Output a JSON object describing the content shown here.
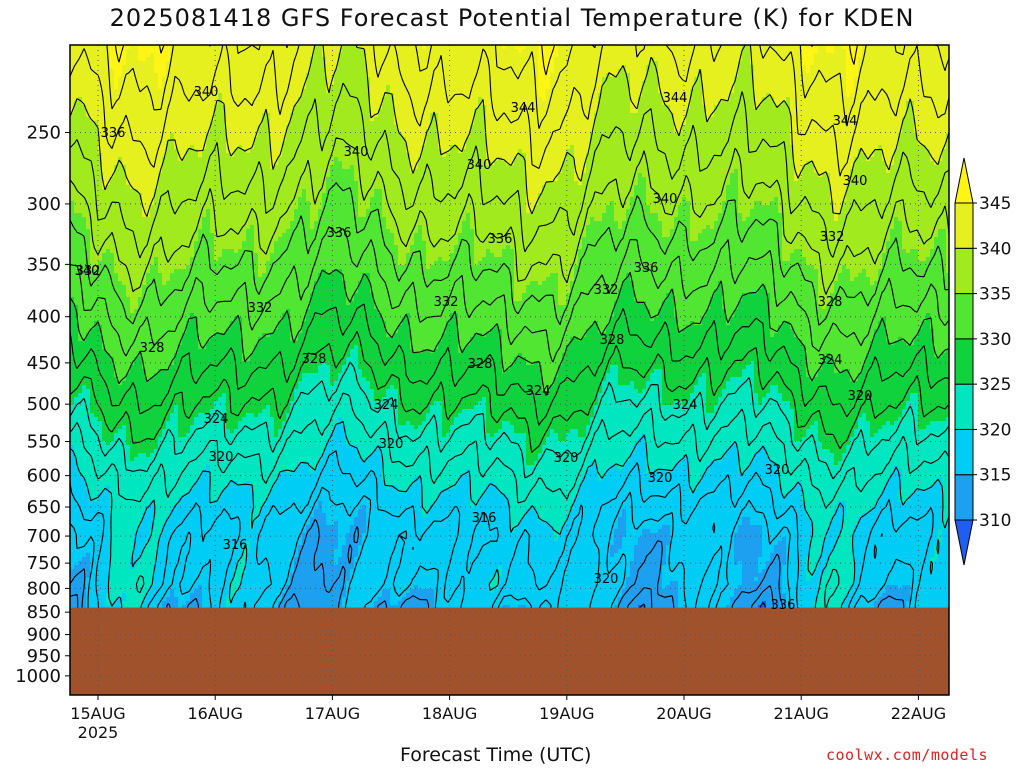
{
  "chart_data": {
    "type": "heatmap",
    "title": "2025081418 GFS Forecast Potential Temperature (K) for KDEN",
    "xlabel": "Forecast Time (UTC)",
    "ylabel": "",
    "credit": "coolwx.com/models",
    "x_ticks": [
      "15AUG",
      "16AUG",
      "17AUG",
      "18AUG",
      "19AUG",
      "20AUG",
      "21AUG",
      "22AUG"
    ],
    "x_tick_sublabel": "2025",
    "y_ticks": [
      250,
      300,
      350,
      400,
      450,
      500,
      550,
      600,
      650,
      700,
      750,
      800,
      850,
      900,
      950,
      1000
    ],
    "y_scale": "log-pressure (inverted)",
    "y_range": [
      200,
      1050
    ],
    "grid": true,
    "surface_pressure": 840,
    "colorbar": {
      "levels": [
        310,
        315,
        320,
        325,
        330,
        335,
        340,
        345
      ],
      "labels": [
        "310",
        "315",
        "320",
        "325",
        "330",
        "335",
        "340",
        "345"
      ],
      "colors": [
        "#1e5ef0",
        "#1ea0f0",
        "#00cdf5",
        "#00e6c0",
        "#10d23c",
        "#50e632",
        "#a0ea1e",
        "#e6f01e",
        "#fff514"
      ]
    },
    "contour_interval": 2,
    "contour_label_values": [
      "340",
      "336",
      "340",
      "344",
      "340",
      "344",
      "344",
      "340",
      "340",
      "336",
      "336",
      "336",
      "332",
      "332",
      "332",
      "332",
      "332",
      "328",
      "328",
      "328",
      "328",
      "328",
      "324",
      "324",
      "324",
      "324",
      "324",
      "320",
      "320",
      "320",
      "320",
      "320",
      "320",
      "316",
      "316",
      "320",
      "336",
      "340"
    ],
    "surface_color": "#a0522d"
  }
}
